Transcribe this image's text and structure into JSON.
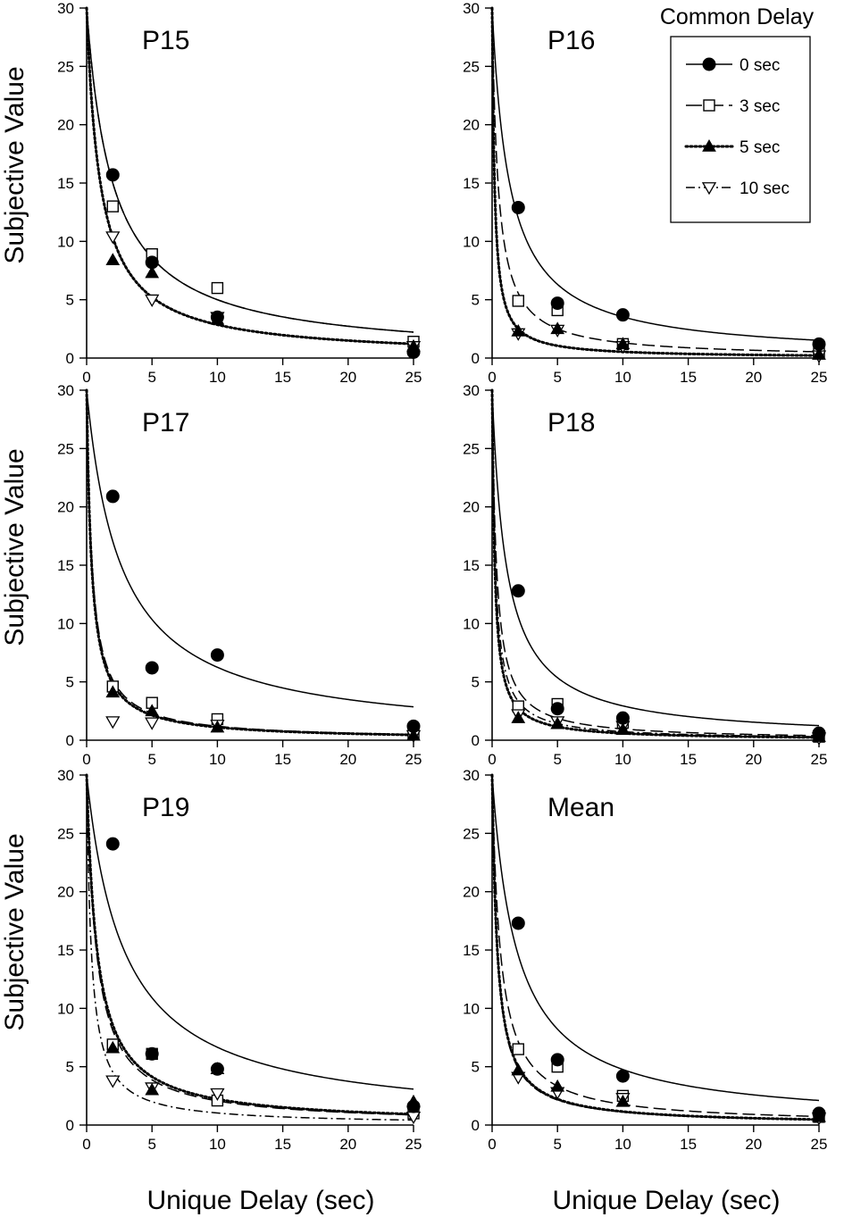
{
  "chart_data": {
    "type": "scatter",
    "figure_title": "",
    "ylabel": "Subjective Value",
    "xlabel": "Unique Delay (sec)",
    "xlim": [
      0,
      25
    ],
    "ylim": [
      0,
      30
    ],
    "x_ticks": [
      0,
      5,
      10,
      15,
      20,
      25
    ],
    "y_ticks": [
      0,
      5,
      10,
      15,
      20,
      25,
      30
    ],
    "legend": {
      "title": "Common Delay",
      "entries": [
        {
          "label": "0 sec",
          "marker": "filled-circle",
          "line": "solid"
        },
        {
          "label": "3 sec",
          "marker": "open-square",
          "line": "long-dash"
        },
        {
          "label": "5 sec",
          "marker": "filled-triangle",
          "line": "dotted"
        },
        {
          "label": "10 sec",
          "marker": "open-triangle-down",
          "line": "dash-dot"
        }
      ]
    },
    "x": [
      2,
      5,
      10,
      25
    ],
    "panels": [
      {
        "title": "P15",
        "series": [
          {
            "name": "0 sec",
            "values": [
              15.7,
              8.2,
              3.5,
              0.5
            ],
            "k": 0.5
          },
          {
            "name": "3 sec",
            "values": [
              13.0,
              8.9,
              6.0,
              1.4
            ],
            "k": 0.5
          },
          {
            "name": "5 sec",
            "values": [
              8.4,
              7.3,
              3.3,
              1.0
            ],
            "k": 0.95
          },
          {
            "name": "10 sec",
            "values": [
              10.4,
              5.0,
              3.5,
              1.0
            ],
            "k": 0.95
          }
        ]
      },
      {
        "title": "P16",
        "series": [
          {
            "name": "0 sec",
            "values": [
              12.9,
              4.7,
              3.7,
              1.2
            ],
            "k": 0.75
          },
          {
            "name": "3 sec",
            "values": [
              4.9,
              4.1,
              1.2,
              0.4
            ],
            "k": 2.2
          },
          {
            "name": "5 sec",
            "values": [
              2.3,
              2.5,
              1.2,
              0.3
            ],
            "k": 5.5
          },
          {
            "name": "10 sec",
            "values": [
              2.1,
              2.4,
              1.0,
              0.2
            ],
            "k": 5.5
          }
        ]
      },
      {
        "title": "P17",
        "series": [
          {
            "name": "0 sec",
            "values": [
              20.9,
              6.2,
              7.3,
              1.2
            ],
            "k": 0.38
          },
          {
            "name": "3 sec",
            "values": [
              4.6,
              3.2,
              1.8,
              0.5
            ],
            "k": 2.4
          },
          {
            "name": "5 sec",
            "values": [
              4.1,
              2.5,
              1.1,
              0.4
            ],
            "k": 2.6
          },
          {
            "name": "10 sec",
            "values": [
              1.6,
              1.5,
              1.3,
              0.4
            ],
            "k": 2.6
          }
        ]
      },
      {
        "title": "P18",
        "series": [
          {
            "name": "0 sec",
            "values": [
              12.8,
              2.7,
              1.9,
              0.6
            ],
            "k": 0.92
          },
          {
            "name": "3 sec",
            "values": [
              2.9,
              3.1,
              1.5,
              0.3
            ],
            "k": 3.0
          },
          {
            "name": "5 sec",
            "values": [
              1.9,
              1.4,
              0.9,
              0.3
            ],
            "k": 5.0
          },
          {
            "name": "10 sec",
            "values": [
              2.2,
              1.6,
              1.2,
              0.2
            ],
            "k": 4.0
          }
        ]
      },
      {
        "title": "P19",
        "series": [
          {
            "name": "0 sec",
            "values": [
              24.1,
              6.1,
              4.8,
              1.6
            ],
            "k": 0.35
          },
          {
            "name": "3 sec",
            "values": [
              6.9,
              6.1,
              2.1,
              1.0
            ],
            "k": 1.35
          },
          {
            "name": "5 sec",
            "values": [
              6.6,
              3.0,
              4.8,
              2.0
            ],
            "k": 1.25
          },
          {
            "name": "10 sec",
            "values": [
              3.8,
              3.2,
              2.7,
              0.7
            ],
            "k": 2.8
          }
        ]
      },
      {
        "title": "Mean",
        "series": [
          {
            "name": "0 sec",
            "values": [
              17.3,
              5.6,
              4.2,
              1.0
            ],
            "k": 0.53
          },
          {
            "name": "3 sec",
            "values": [
              6.5,
              5.0,
              2.5,
              0.7
            ],
            "k": 1.6
          },
          {
            "name": "5 sec",
            "values": [
              4.7,
              3.3,
              2.0,
              0.7
            ],
            "k": 2.5
          },
          {
            "name": "10 sec",
            "values": [
              4.1,
              2.8,
              2.3,
              0.6
            ],
            "k": 2.6
          }
        ]
      }
    ]
  }
}
